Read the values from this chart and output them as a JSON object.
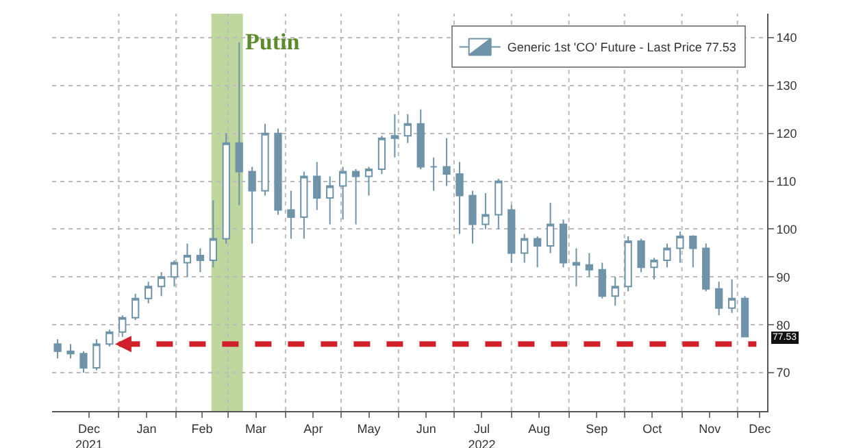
{
  "chart_data": {
    "type": "candlestick",
    "x": [
      "2021-11-29",
      "2021-12-06",
      "2021-12-13",
      "2021-12-20",
      "2021-12-27",
      "2022-01-03",
      "2022-01-10",
      "2022-01-17",
      "2022-01-24",
      "2022-01-31",
      "2022-02-07",
      "2022-02-14",
      "2022-02-21",
      "2022-02-28",
      "2022-03-07",
      "2022-03-14",
      "2022-03-21",
      "2022-03-28",
      "2022-04-04",
      "2022-04-11",
      "2022-04-18",
      "2022-04-25",
      "2022-05-02",
      "2022-05-09",
      "2022-05-16",
      "2022-05-23",
      "2022-05-30",
      "2022-06-06",
      "2022-06-13",
      "2022-06-20",
      "2022-06-27",
      "2022-07-04",
      "2022-07-11",
      "2022-07-18",
      "2022-07-25",
      "2022-08-01",
      "2022-08-08",
      "2022-08-15",
      "2022-08-22",
      "2022-08-29",
      "2022-09-05",
      "2022-09-12",
      "2022-09-19",
      "2022-09-26",
      "2022-10-03",
      "2022-10-10",
      "2022-10-17",
      "2022-10-24",
      "2022-10-31",
      "2022-11-07",
      "2022-11-14",
      "2022-11-21",
      "2022-11-28",
      "2022-12-05"
    ],
    "series": [
      {
        "name": "Generic 1st 'CO' Future - Last Price 77.53",
        "color": "#6f93a8",
        "ohlc": [
          [
            76,
            77,
            73,
            74.5
          ],
          [
            74.5,
            76,
            73,
            74
          ],
          [
            74,
            74.5,
            70,
            71
          ],
          [
            71,
            77,
            70.5,
            76
          ],
          [
            76,
            79,
            75.5,
            78.5
          ],
          [
            78.5,
            82,
            77.5,
            81.5
          ],
          [
            81.5,
            86.5,
            81,
            85.5
          ],
          [
            85.5,
            89,
            84.5,
            88
          ],
          [
            88,
            91,
            86,
            90
          ],
          [
            90,
            93.5,
            88,
            93
          ],
          [
            93,
            97,
            90,
            94.5
          ],
          [
            94.5,
            96,
            91,
            93.5
          ],
          [
            93.5,
            106,
            92,
            98
          ],
          [
            98,
            120,
            97,
            118
          ],
          [
            118,
            139,
            105,
            112
          ],
          [
            112,
            113,
            97,
            108
          ],
          [
            108,
            122,
            107,
            120
          ],
          [
            120,
            121,
            103,
            104
          ],
          [
            104,
            108,
            98,
            102.5
          ],
          [
            102.5,
            112,
            98,
            111
          ],
          [
            111,
            114,
            104,
            106.5
          ],
          [
            106.5,
            111,
            101,
            109
          ],
          [
            109,
            113,
            102,
            112
          ],
          [
            112,
            112.5,
            101,
            111
          ],
          [
            111,
            113,
            107,
            112.5
          ],
          [
            112.5,
            119.5,
            111.5,
            119
          ],
          [
            119,
            124,
            115,
            119.5
          ],
          [
            119.5,
            124,
            118,
            122
          ],
          [
            122,
            125,
            112.5,
            113
          ],
          [
            113,
            115,
            108,
            113
          ],
          [
            113,
            119,
            109,
            111.5
          ],
          [
            111.5,
            114,
            99,
            107
          ],
          [
            107,
            108,
            97,
            101
          ],
          [
            101,
            107.5,
            100,
            103
          ],
          [
            103,
            110.5,
            100,
            110
          ],
          [
            104,
            105,
            93,
            95
          ],
          [
            95,
            99,
            93,
            98
          ],
          [
            98,
            98.5,
            92,
            96.5
          ],
          [
            96.5,
            105.5,
            95,
            101
          ],
          [
            101,
            102,
            92,
            93
          ],
          [
            93,
            96,
            88,
            92.5
          ],
          [
            92.5,
            95,
            90,
            91.5
          ],
          [
            91.5,
            93,
            85.5,
            86
          ],
          [
            86,
            90,
            84,
            88
          ],
          [
            88,
            98.5,
            87,
            97.5
          ],
          [
            97.5,
            98,
            91,
            92
          ],
          [
            92,
            94,
            89.5,
            93.5
          ],
          [
            93.5,
            97,
            92,
            96
          ],
          [
            96,
            99.5,
            93,
            98.5
          ],
          [
            98.5,
            98.7,
            92,
            96
          ],
          [
            96,
            97,
            87,
            87.5
          ],
          [
            87.5,
            89,
            82,
            83.5
          ],
          [
            83.5,
            89.5,
            82.5,
            85.5
          ],
          [
            85.5,
            86,
            77.5,
            77.53
          ]
        ]
      }
    ],
    "xlim": [
      "2021-11-26",
      "2022-12-17"
    ],
    "xticks": [
      {
        "value": "2021-12-16",
        "label": "Dec\n2021"
      },
      {
        "value": "2022-01-01",
        "label": null
      },
      {
        "value": "2022-01-16",
        "label": "Jan"
      },
      {
        "value": "2022-02-01",
        "label": null
      },
      {
        "value": "2022-02-15",
        "label": "Feb"
      },
      {
        "value": "2022-03-01",
        "label": null
      },
      {
        "value": "2022-03-16",
        "label": "Mar"
      },
      {
        "value": "2022-04-01",
        "label": null
      },
      {
        "value": "2022-04-16",
        "label": "Apr"
      },
      {
        "value": "2022-05-01",
        "label": null
      },
      {
        "value": "2022-05-16",
        "label": "May"
      },
      {
        "value": "2022-06-01",
        "label": null
      },
      {
        "value": "2022-06-16",
        "label": "Jun"
      },
      {
        "value": "2022-07-01",
        "label": null
      },
      {
        "value": "2022-07-16",
        "label": "Jul\n2022"
      },
      {
        "value": "2022-08-01",
        "label": null
      },
      {
        "value": "2022-08-16",
        "label": "Aug"
      },
      {
        "value": "2022-09-01",
        "label": null
      },
      {
        "value": "2022-09-16",
        "label": "Sep"
      },
      {
        "value": "2022-10-01",
        "label": null
      },
      {
        "value": "2022-10-16",
        "label": "Oct"
      },
      {
        "value": "2022-11-01",
        "label": null
      },
      {
        "value": "2022-11-16",
        "label": "Nov"
      },
      {
        "value": "2022-12-01",
        "label": null
      },
      {
        "value": "2022-12-13",
        "label": "Dec"
      }
    ],
    "ylim": [
      62,
      145
    ],
    "yticks": [
      70,
      80,
      90,
      100,
      110,
      120,
      130,
      140
    ],
    "grid": true,
    "legend": "top right",
    "bands": [
      {
        "axis": "x",
        "from": "2022-02-20",
        "to": "2022-03-09",
        "label": "Putin",
        "color": "#a9c97f"
      }
    ],
    "ref_lines": [
      {
        "axis": "y",
        "value": 76,
        "color": "#d0212b",
        "line_style": "dashed"
      }
    ],
    "annotations": [
      "77.53"
    ]
  }
}
